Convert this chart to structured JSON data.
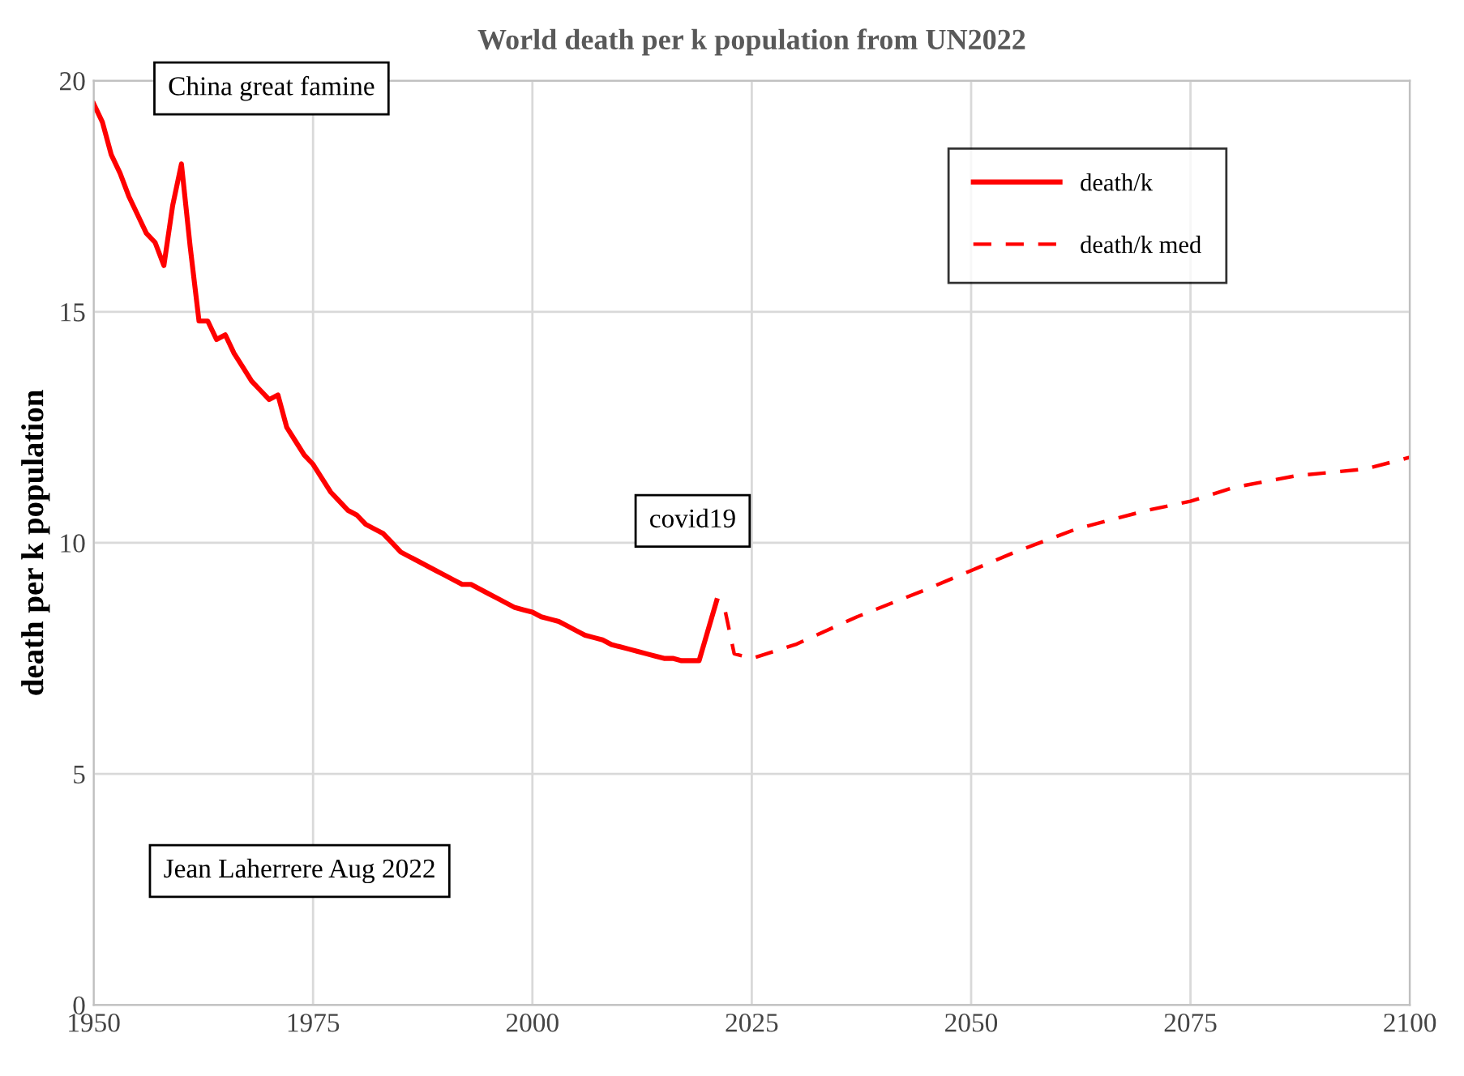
{
  "chart_data": {
    "type": "line",
    "title": "World death per k population from UN2022",
    "ylabel": "death per k population",
    "xlim": [
      1950,
      2100
    ],
    "xticks": [
      1950,
      1975,
      2000,
      2025,
      2050,
      2075,
      2100
    ],
    "ylim": [
      0,
      20
    ],
    "yticks": [
      0,
      5,
      10,
      15,
      20
    ],
    "grid": true,
    "legend": "top right",
    "series": [
      {
        "name": "death/k",
        "color": "#ff0000",
        "line_style": "solid",
        "x": [
          1950,
          1951,
          1952,
          1953,
          1954,
          1955,
          1956,
          1957,
          1958,
          1959,
          1960,
          1961,
          1962,
          1963,
          1964,
          1965,
          1966,
          1967,
          1968,
          1969,
          1970,
          1971,
          1972,
          1973,
          1974,
          1975,
          1976,
          1977,
          1978,
          1979,
          1980,
          1981,
          1982,
          1983,
          1984,
          1985,
          1986,
          1987,
          1988,
          1989,
          1990,
          1991,
          1992,
          1993,
          1994,
          1995,
          1996,
          1997,
          1998,
          1999,
          2000,
          2001,
          2002,
          2003,
          2004,
          2005,
          2006,
          2007,
          2008,
          2009,
          2010,
          2011,
          2012,
          2013,
          2014,
          2015,
          2016,
          2017,
          2018,
          2019,
          2020,
          2021
        ],
        "values": [
          19.5,
          19.1,
          18.4,
          18.0,
          17.5,
          17.1,
          16.7,
          16.5,
          16.0,
          17.3,
          18.2,
          16.4,
          14.8,
          14.8,
          14.4,
          14.5,
          14.1,
          13.8,
          13.5,
          13.3,
          13.1,
          13.2,
          12.5,
          12.2,
          11.9,
          11.7,
          11.4,
          11.1,
          10.9,
          10.7,
          10.6,
          10.4,
          10.3,
          10.2,
          10.0,
          9.8,
          9.7,
          9.6,
          9.5,
          9.4,
          9.3,
          9.2,
          9.1,
          9.1,
          9.0,
          8.9,
          8.8,
          8.7,
          8.6,
          8.55,
          8.5,
          8.4,
          8.35,
          8.3,
          8.2,
          8.1,
          8.0,
          7.95,
          7.9,
          7.8,
          7.75,
          7.7,
          7.65,
          7.6,
          7.55,
          7.5,
          7.5,
          7.45,
          7.45,
          7.45,
          8.1,
          8.75
        ]
      },
      {
        "name": "death/k med",
        "color": "#ff0000",
        "line_style": "dashed",
        "x": [
          2022,
          2023,
          2025,
          2030,
          2037,
          2045,
          2050,
          2055,
          2062,
          2070,
          2075,
          2080,
          2087,
          2095,
          2100
        ],
        "values": [
          8.5,
          7.6,
          7.5,
          7.8,
          8.4,
          9.0,
          9.4,
          9.8,
          10.3,
          10.7,
          10.9,
          11.2,
          11.45,
          11.6,
          11.85
        ]
      }
    ],
    "annotations": [
      {
        "text": "China great famine",
        "x": 1960,
        "y": 18.2
      },
      {
        "text": "covid19",
        "x": 2021,
        "y": 8.75
      },
      "Jean Laherrere Aug 2022"
    ]
  }
}
